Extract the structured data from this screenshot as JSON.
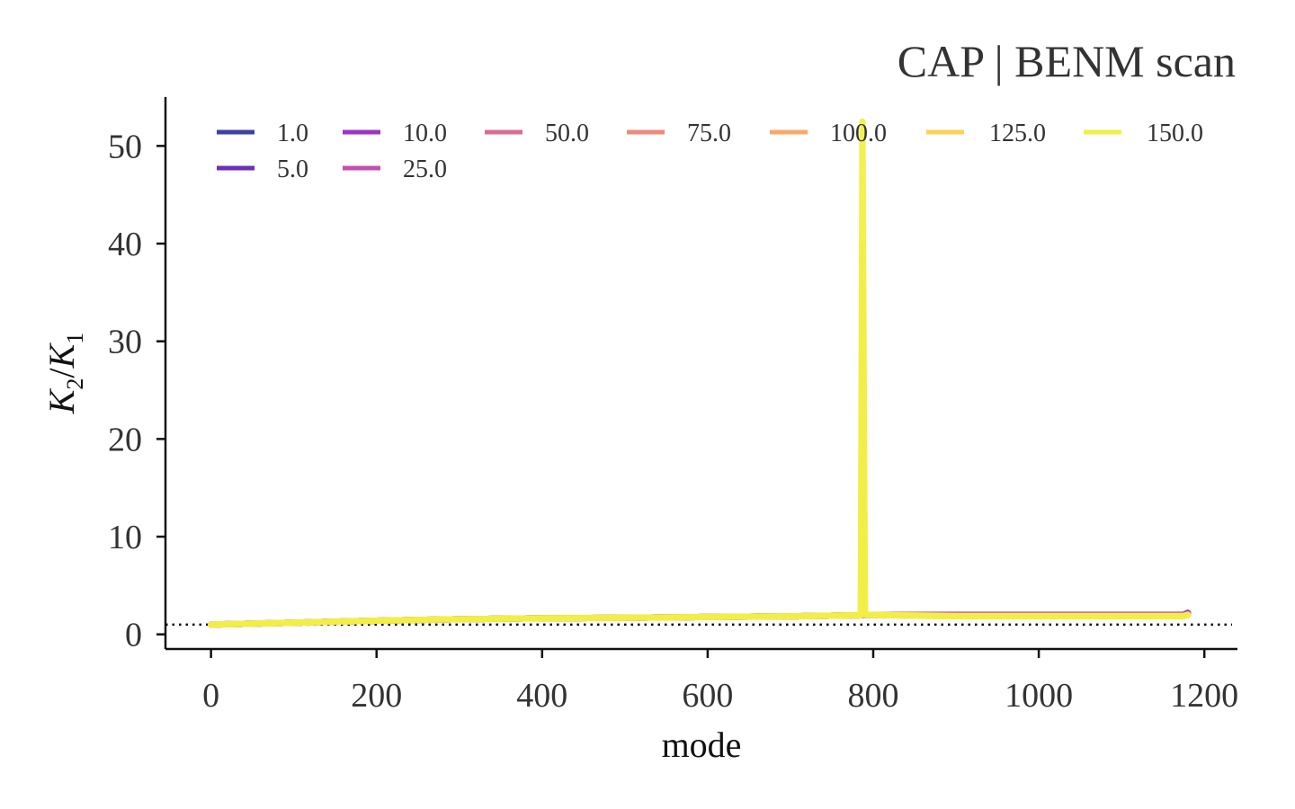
{
  "chart_data": {
    "type": "line",
    "title": "CAP | BENM scan",
    "xlabel": "mode",
    "ylabel": "K2/K1",
    "ylabel_parts": {
      "k": "K",
      "sub2": "2",
      "slash": "/",
      "sub1": "1"
    },
    "xlim": [
      -55,
      1240
    ],
    "ylim": [
      -1.5,
      55
    ],
    "xticks": [
      0,
      200,
      400,
      600,
      800,
      1000,
      1200
    ],
    "yticks": [
      0,
      10,
      20,
      30,
      40,
      50
    ],
    "grid": false,
    "legend_placement": "top",
    "reference_line": {
      "y": 1.0,
      "style": "dotted",
      "color": "#000000"
    },
    "spike": {
      "x": 787,
      "peak_y": 52.5
    },
    "series": [
      {
        "name": "1.0",
        "color": "#3f3fa6",
        "x": [
          0,
          100,
          200,
          300,
          400,
          500,
          600,
          700,
          785,
          790,
          900,
          1000,
          1100,
          1175,
          1180
        ],
        "y": [
          1.0,
          1.2,
          1.4,
          1.55,
          1.65,
          1.7,
          1.78,
          1.85,
          1.95,
          2.0,
          2.0,
          2.0,
          2.0,
          2.0,
          2.2
        ]
      },
      {
        "name": "5.0",
        "color": "#6f2fb7",
        "x": [
          0,
          100,
          200,
          300,
          400,
          500,
          600,
          700,
          785,
          790,
          900,
          1000,
          1100,
          1175,
          1180
        ],
        "y": [
          1.0,
          1.2,
          1.4,
          1.55,
          1.65,
          1.7,
          1.78,
          1.85,
          1.95,
          2.0,
          2.0,
          2.0,
          2.0,
          2.0,
          2.2
        ]
      },
      {
        "name": "10.0",
        "color": "#9b35c4",
        "x": [
          0,
          100,
          200,
          300,
          400,
          500,
          600,
          700,
          785,
          790,
          900,
          1000,
          1100,
          1175,
          1180
        ],
        "y": [
          1.0,
          1.2,
          1.4,
          1.55,
          1.65,
          1.7,
          1.78,
          1.85,
          1.95,
          2.0,
          1.98,
          1.98,
          1.98,
          1.98,
          2.15
        ]
      },
      {
        "name": "25.0",
        "color": "#c44fae",
        "x": [
          0,
          100,
          200,
          300,
          400,
          500,
          600,
          700,
          785,
          790,
          900,
          1000,
          1100,
          1175,
          1180
        ],
        "y": [
          1.0,
          1.2,
          1.4,
          1.55,
          1.65,
          1.7,
          1.78,
          1.85,
          1.95,
          2.0,
          1.95,
          1.95,
          1.95,
          1.95,
          2.1
        ]
      },
      {
        "name": "50.0",
        "color": "#db6c8e",
        "x": [
          0,
          100,
          200,
          300,
          400,
          500,
          600,
          700,
          785,
          790,
          900,
          1000,
          1100,
          1175,
          1180
        ],
        "y": [
          1.0,
          1.2,
          1.4,
          1.55,
          1.65,
          1.7,
          1.78,
          1.85,
          1.95,
          2.0,
          1.92,
          1.92,
          1.92,
          1.92,
          2.05
        ]
      },
      {
        "name": "75.0",
        "color": "#ee8a7c",
        "x": [
          0,
          100,
          200,
          300,
          400,
          500,
          600,
          700,
          785,
          787,
          790,
          900,
          1000,
          1100,
          1175,
          1180
        ],
        "y": [
          1.0,
          1.2,
          1.4,
          1.55,
          1.65,
          1.7,
          1.78,
          1.85,
          1.95,
          4.0,
          2.0,
          1.9,
          1.9,
          1.9,
          1.9,
          2.0
        ]
      },
      {
        "name": "100.0",
        "color": "#f9a868",
        "x": [
          0,
          100,
          200,
          300,
          400,
          500,
          600,
          700,
          785,
          787,
          790,
          900,
          1000,
          1100,
          1175,
          1180
        ],
        "y": [
          1.0,
          1.2,
          1.4,
          1.55,
          1.65,
          1.7,
          1.78,
          1.85,
          1.95,
          12.0,
          2.0,
          1.88,
          1.88,
          1.88,
          1.88,
          2.0
        ]
      },
      {
        "name": "125.0",
        "color": "#fdd254",
        "x": [
          0,
          100,
          200,
          300,
          400,
          500,
          600,
          700,
          785,
          787,
          790,
          900,
          1000,
          1100,
          1175,
          1180
        ],
        "y": [
          1.0,
          1.2,
          1.4,
          1.55,
          1.65,
          1.7,
          1.78,
          1.85,
          1.95,
          40.0,
          2.0,
          1.86,
          1.86,
          1.86,
          1.86,
          2.0
        ]
      },
      {
        "name": "150.0",
        "color": "#f0f046",
        "x": [
          0,
          100,
          200,
          300,
          400,
          500,
          600,
          700,
          785,
          787,
          790,
          900,
          1000,
          1100,
          1175,
          1180
        ],
        "y": [
          1.0,
          1.2,
          1.4,
          1.55,
          1.65,
          1.7,
          1.78,
          1.85,
          1.95,
          52.5,
          2.0,
          1.85,
          1.85,
          1.85,
          1.85,
          2.0
        ]
      }
    ]
  }
}
